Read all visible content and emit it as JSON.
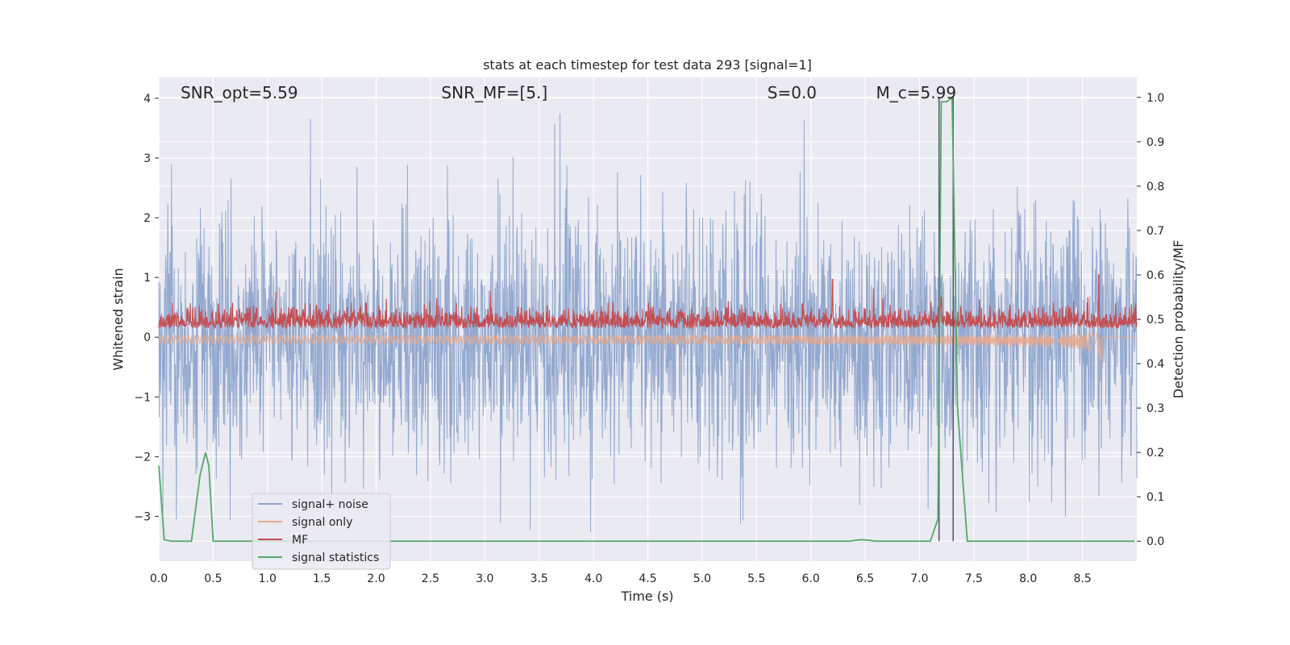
{
  "chart_data": {
    "type": "line",
    "title": "stats at each timestep for test data 293 [signal=1]",
    "xlabel": "Time (s)",
    "ylabel_left": "Whitened strain",
    "ylabel_right": "Detection probability/MF",
    "xlim": [
      0,
      9.0
    ],
    "ylim_left": [
      -3.75,
      4.35
    ],
    "ylim_right": [
      -0.045,
      1.045
    ],
    "x_ticks": [
      "0.0",
      "0.5",
      "1.0",
      "1.5",
      "2.0",
      "2.5",
      "3.0",
      "3.5",
      "4.0",
      "4.5",
      "5.0",
      "5.5",
      "6.0",
      "6.5",
      "7.0",
      "7.5",
      "8.0",
      "8.5"
    ],
    "x_tick_values": [
      0,
      0.5,
      1,
      1.5,
      2,
      2.5,
      3,
      3.5,
      4,
      4.5,
      5,
      5.5,
      6,
      6.5,
      7,
      7.5,
      8,
      8.5
    ],
    "y_ticks_left": [
      "4",
      "3",
      "2",
      "1",
      "0",
      "−1",
      "−2",
      "−3"
    ],
    "y_tick_values_left": [
      4,
      3,
      2,
      1,
      0,
      -1,
      -2,
      -3
    ],
    "y_ticks_right": [
      "1.0",
      "0.9",
      "0.8",
      "0.7",
      "0.6",
      "0.5",
      "0.4",
      "0.3",
      "0.2",
      "0.1",
      "0.0"
    ],
    "y_tick_values_right": [
      1.0,
      0.9,
      0.8,
      0.7,
      0.6,
      0.5,
      0.4,
      0.3,
      0.2,
      0.1,
      0.0
    ],
    "grid": true,
    "legend_position": "bottom-left",
    "annotations": [
      {
        "text": "SNR_opt=5.59",
        "x": 0.2,
        "y": 4.0
      },
      {
        "text": "SNR_MF=[5.]",
        "x": 2.6,
        "y": 4.0
      },
      {
        "text": "S=0.0",
        "x": 5.6,
        "y": 4.0
      },
      {
        "text": "M_c=5.99",
        "x": 6.6,
        "y": 4.0
      }
    ],
    "series": [
      {
        "name": "signal+ noise",
        "axis": "left",
        "color": "#8ea4cc",
        "noise_amplitude": 1.05,
        "peak_max": 4.0,
        "peak_min": -3.4
      },
      {
        "name": "signal only",
        "axis": "left",
        "color": "#e8a88c",
        "chirp_end_time": 8.68,
        "chirp_end_amplitude": -0.55
      },
      {
        "name": "MF",
        "axis": "right",
        "color": "#c44e52",
        "baseline": 0.5,
        "noise_range": [
          0.48,
          0.57
        ],
        "spikes": [
          {
            "x": 6.2,
            "y": 0.59
          },
          {
            "x": 7.2,
            "y": 0.55
          },
          {
            "x": 8.65,
            "y": 0.6
          }
        ]
      },
      {
        "name": "signal statistics",
        "axis": "right",
        "color": "#55a868",
        "x": [
          0.0,
          0.05,
          0.12,
          0.3,
          0.38,
          0.43,
          0.46,
          0.5,
          6.35,
          6.45,
          6.5,
          6.6,
          7.1,
          7.17,
          7.2,
          7.25,
          7.3,
          7.35,
          7.44,
          8.98
        ],
        "y": [
          0.17,
          0.003,
          0.0,
          0.0,
          0.15,
          0.2,
          0.17,
          0.0,
          0.0,
          0.003,
          0.003,
          0.0,
          0.0,
          0.05,
          0.99,
          0.99,
          1.0,
          0.3,
          0.0,
          0.0
        ]
      }
    ],
    "vertical_markers": [
      {
        "x": 7.18,
        "color": "#4c566a"
      },
      {
        "x": 7.31,
        "color": "#4c566a"
      }
    ]
  }
}
